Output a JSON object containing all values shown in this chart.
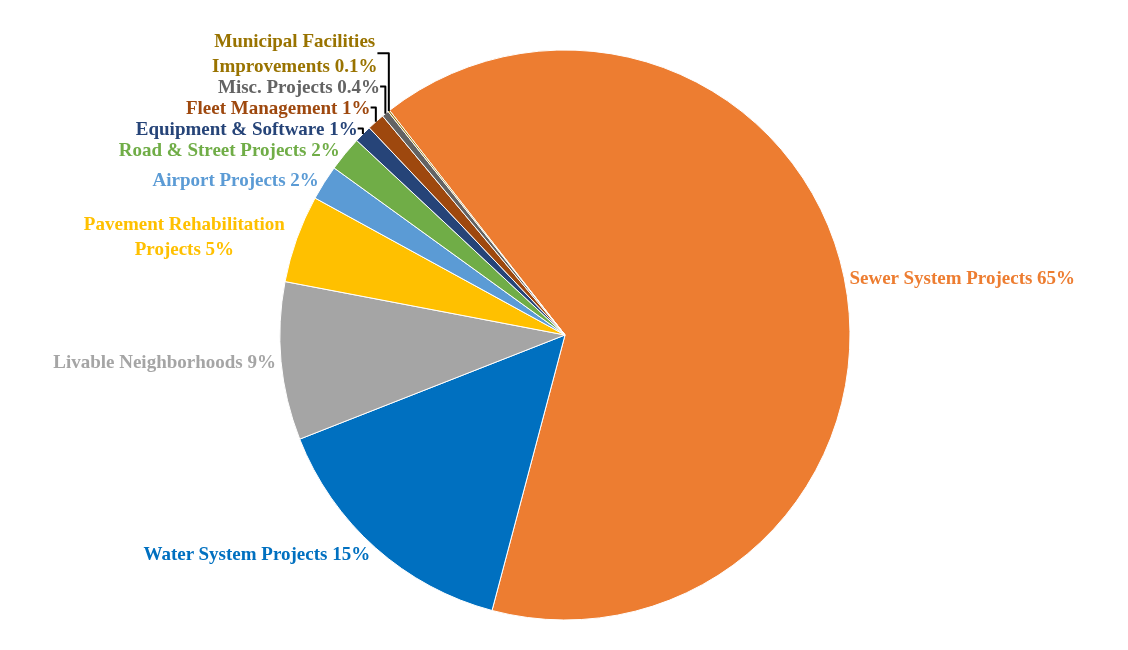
{
  "chart_data": {
    "type": "pie",
    "categories": [
      "Sewer System Projects",
      "Water System Projects",
      "Livable Neighborhoods",
      "Pavement Rehabilitation Projects",
      "Airport Projects",
      "Road & Street Projects",
      "Equipment & Software",
      "Fleet Management",
      "Misc. Projects",
      "Municipal Facilities Improvements"
    ],
    "values": [
      65,
      15,
      9,
      5,
      2,
      2,
      1,
      1,
      0.4,
      0.1
    ],
    "colors": [
      "#ed7d31",
      "#0070c0",
      "#a5a5a5",
      "#ffc000",
      "#5b9bd5",
      "#70ad47",
      "#264478",
      "#9e480e",
      "#636363",
      "#997300"
    ],
    "value_labels": [
      "65%",
      "15%",
      "9%",
      "5%",
      "2%",
      "2%",
      "1%",
      "1%",
      "0.4%",
      "0.1%"
    ],
    "legend": false
  }
}
